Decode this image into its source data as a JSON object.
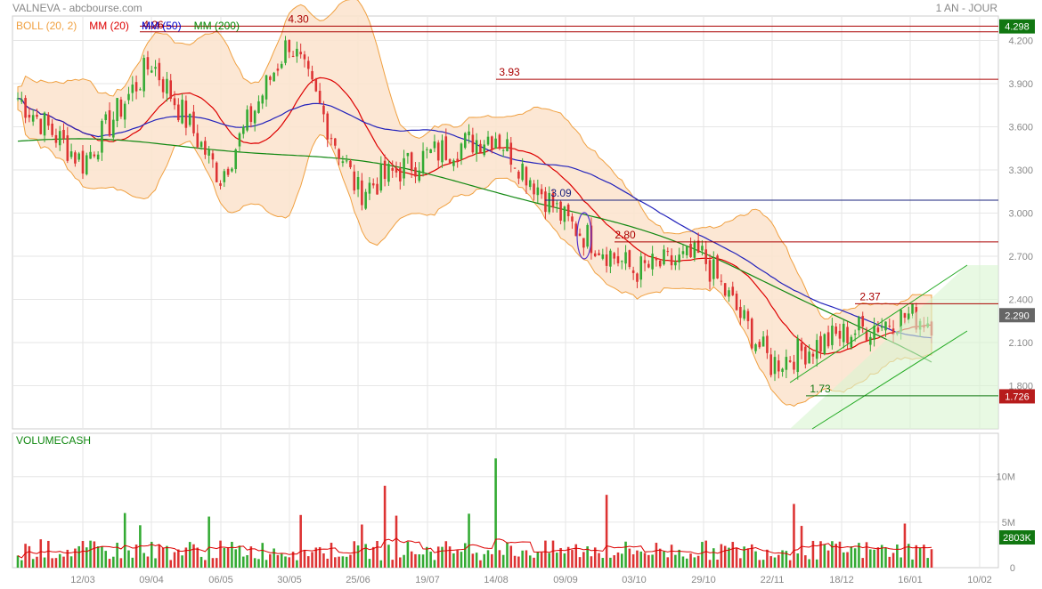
{
  "header": {
    "title": "VALNEVA - abcbourse.com",
    "period": "1 AN - JOUR"
  },
  "legend": [
    {
      "label": "BOLL (20, 2)",
      "color": "#f0a040"
    },
    {
      "label": "MM (20)",
      "color": "#dd0000"
    },
    {
      "label": "MM (50)",
      "color": "#0000cc"
    },
    {
      "label": "MM (200)",
      "color": "#008800"
    }
  ],
  "colors": {
    "up": "#33aa33",
    "down": "#dd3333",
    "boll_fill": "#fbe3cc",
    "boll_line": "#f0a040",
    "mm20": "#dd0000",
    "mm50": "#2222bb",
    "mm200": "#118811",
    "resistance": "#aa0000",
    "support_blue": "#1a237e",
    "channel": "#22aa22",
    "channel_fill": "#d8f5d0",
    "grid": "#e6e6e6"
  },
  "chart_data": {
    "type": "candlestick",
    "title": "VALNEVA - abcbourse.com",
    "price_axis": {
      "ylim": [
        1.5,
        4.37
      ],
      "ticks": [
        "1.800",
        "2.100",
        "2.400",
        "2.700",
        "3.000",
        "3.300",
        "3.600",
        "3.900",
        "4.200"
      ]
    },
    "date_axis": {
      "ticks": [
        "12/03",
        "09/04",
        "06/05",
        "30/05",
        "25/06",
        "19/07",
        "14/08",
        "09/09",
        "03/10",
        "29/10",
        "22/11",
        "18/12",
        "16/01",
        "10/02"
      ]
    },
    "last_price": "2.290",
    "price_tags": [
      {
        "text": "4.298",
        "color": "#117711"
      },
      {
        "text": "2.290",
        "color": "#666666"
      },
      {
        "text": "1.726",
        "color": "#b71c1c"
      }
    ],
    "annotations": [
      {
        "text": "4.26",
        "y": 4.26,
        "color": "#aa0000"
      },
      {
        "text": "4.30",
        "y": 4.3,
        "color": "#aa0000"
      },
      {
        "text": "3.93",
        "y": 3.93,
        "color": "#aa0000"
      },
      {
        "text": "3.09",
        "y": 3.09,
        "color": "#1a237e"
      },
      {
        "text": "2.80",
        "y": 2.8,
        "color": "#aa0000"
      },
      {
        "text": "2.37",
        "y": 2.37,
        "color": "#aa0000"
      },
      {
        "text": "1.73",
        "y": 1.73,
        "color": "#117711"
      }
    ],
    "horizontal_levels": [
      {
        "y": 4.3,
        "color": "#aa0000"
      },
      {
        "y": 4.26,
        "color": "#aa0000"
      },
      {
        "y": 3.93,
        "color": "#aa0000"
      },
      {
        "y": 3.09,
        "color": "#1a237e"
      },
      {
        "y": 2.8,
        "color": "#aa0000"
      },
      {
        "y": 2.37,
        "color": "#aa0000"
      },
      {
        "y": 1.73,
        "color": "#117711"
      }
    ],
    "key_points": [
      {
        "date": "12/03",
        "close": 3.35
      },
      {
        "date": "09/04",
        "close": 4.05
      },
      {
        "date": "06/05",
        "close": 3.25
      },
      {
        "date": "30/05",
        "close": 4.2
      },
      {
        "date": "25/06",
        "close": 3.15
      },
      {
        "date": "19/07",
        "close": 3.4
      },
      {
        "date": "14/08",
        "close": 3.55
      },
      {
        "date": "09/09",
        "close": 2.95
      },
      {
        "date": "03/10",
        "close": 2.6
      },
      {
        "date": "29/10",
        "close": 2.7
      },
      {
        "date": "22/11",
        "close": 1.95
      },
      {
        "date": "18/12",
        "close": 2.15
      },
      {
        "date": "16/01",
        "close": 2.29
      }
    ],
    "volume": {
      "label": "VOLUMECASH",
      "ticks": [
        "10M",
        "5M",
        "0"
      ],
      "ylim": [
        0,
        13000000
      ],
      "last": "2803K"
    }
  }
}
